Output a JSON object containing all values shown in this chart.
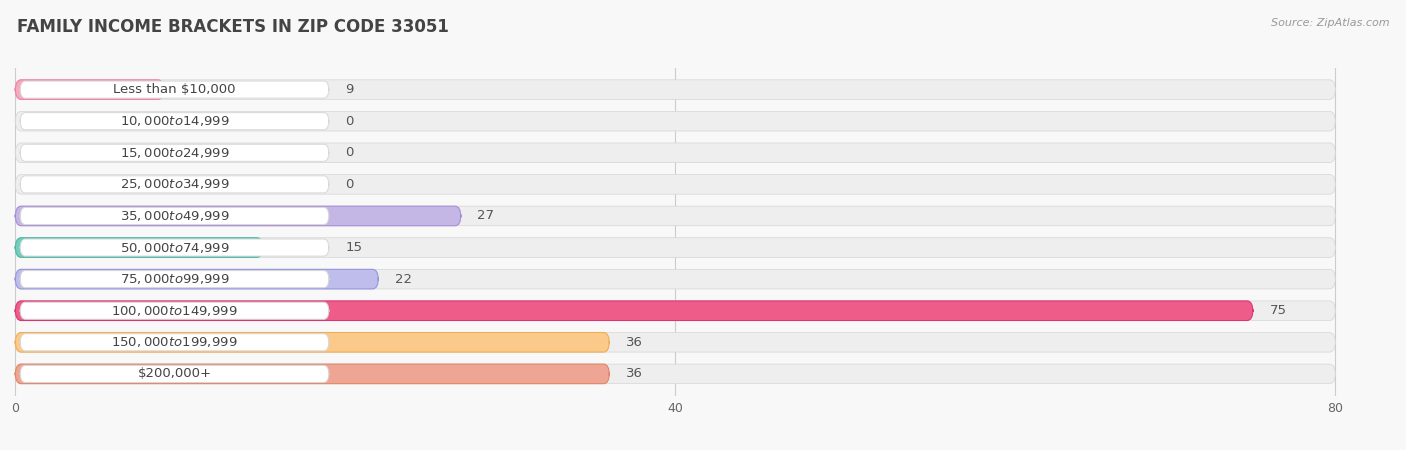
{
  "title": "FAMILY INCOME BRACKETS IN ZIP CODE 33051",
  "source": "Source: ZipAtlas.com",
  "categories": [
    "Less than $10,000",
    "$10,000 to $14,999",
    "$15,000 to $24,999",
    "$25,000 to $34,999",
    "$35,000 to $49,999",
    "$50,000 to $74,999",
    "$75,000 to $99,999",
    "$100,000 to $149,999",
    "$150,000 to $199,999",
    "$200,000+"
  ],
  "values": [
    9,
    0,
    0,
    0,
    27,
    15,
    22,
    75,
    36,
    36
  ],
  "bar_colors": [
    "#F8A8BF",
    "#FBCF9E",
    "#F8B0A4",
    "#AECBEE",
    "#C4B7E6",
    "#75CEBD",
    "#BEBDEC",
    "#EE5D8A",
    "#FBCA8A",
    "#EFA594"
  ],
  "bar_edge_colors": [
    "#EF80A8",
    "#EFA060",
    "#EF8570",
    "#7FA8DE",
    "#A88DD5",
    "#4DB6A4",
    "#9595DE",
    "#DC3575",
    "#EFAD55",
    "#DF8568"
  ],
  "label_bg_color": "#ffffff",
  "label_border_color": "#d8d8d8",
  "row_bg_color": "#eeeeee",
  "page_bg_color": "#f8f8f8",
  "xlim": [
    0,
    80
  ],
  "xticks": [
    0,
    40,
    80
  ],
  "title_fontsize": 12,
  "label_fontsize": 9.5,
  "value_fontsize": 9.5,
  "title_color": "#444444",
  "source_color": "#999999",
  "value_color": "#555555",
  "label_text_color": "#444444"
}
